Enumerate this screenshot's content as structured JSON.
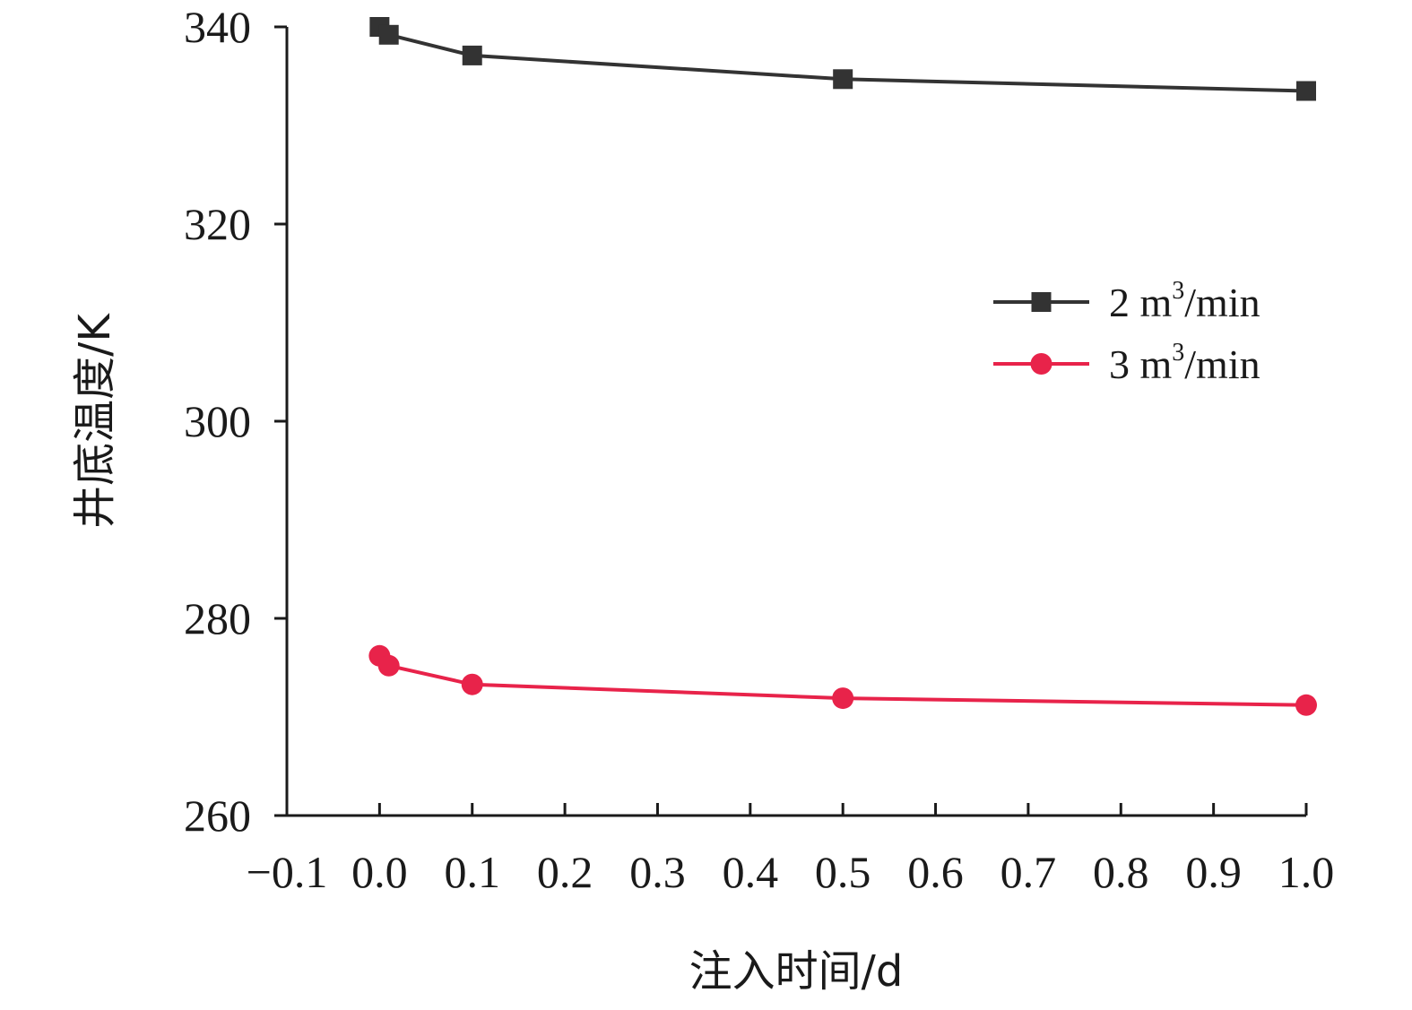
{
  "chart_data": {
    "type": "line",
    "title": "",
    "xlabel": "注入时间/d",
    "ylabel": "井底温度/K",
    "xlim": [
      -0.1,
      1.0
    ],
    "ylim": [
      260,
      340
    ],
    "xticks": [
      "−0.1",
      "0.0",
      "0.1",
      "0.2",
      "0.3",
      "0.4",
      "0.5",
      "0.6",
      "0.7",
      "0.8",
      "0.9",
      "1.0"
    ],
    "xtick_values": [
      -0.1,
      0.0,
      0.1,
      0.2,
      0.3,
      0.4,
      0.5,
      0.6,
      0.7,
      0.8,
      0.9,
      1.0
    ],
    "yticks": [
      "260",
      "280",
      "300",
      "320",
      "340"
    ],
    "ytick_values": [
      260,
      280,
      300,
      320,
      340
    ],
    "grid": false,
    "legend_position": "right",
    "series": [
      {
        "name": "2 m³/min",
        "label_base": "2 m",
        "label_sup": "3",
        "label_unit": "/min",
        "marker": "square",
        "color": "#333333",
        "x": [
          0.0,
          0.01,
          0.1,
          0.5,
          1.0
        ],
        "y": [
          340.0,
          339.2,
          337.1,
          334.7,
          333.5
        ]
      },
      {
        "name": "3 m³/min",
        "label_base": "3 m",
        "label_sup": "3",
        "label_unit": "/min",
        "marker": "circle",
        "color": "#e8234a",
        "x": [
          0.0,
          0.01,
          0.1,
          0.5,
          1.0
        ],
        "y": [
          276.2,
          275.2,
          273.3,
          271.9,
          271.2
        ]
      }
    ]
  }
}
